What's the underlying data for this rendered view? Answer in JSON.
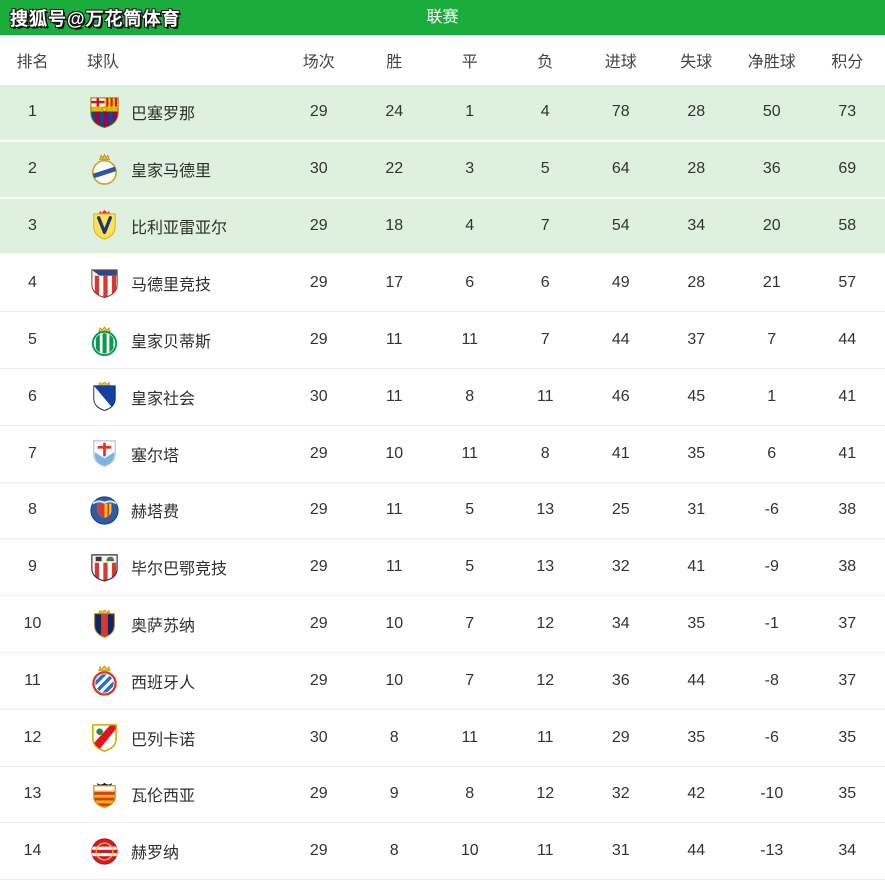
{
  "topbar": {
    "watermark": "搜狐号@万花筒体育",
    "tab": "联赛"
  },
  "colors": {
    "header_green": "#1bad3b",
    "highlight_row_bg": "#def0de"
  },
  "standings": {
    "columns": [
      "排名",
      "球队",
      "场次",
      "胜",
      "平",
      "负",
      "进球",
      "失球",
      "净胜球",
      "积分"
    ],
    "rows": [
      {
        "rank": 1,
        "team": "巴塞罗那",
        "logo": "barcelona",
        "played": 29,
        "won": 24,
        "drawn": 1,
        "lost": 4,
        "goals_for": 78,
        "goals_against": 28,
        "goal_diff": 50,
        "points": 73,
        "highlight": true
      },
      {
        "rank": 2,
        "team": "皇家马德里",
        "logo": "real-madrid",
        "played": 30,
        "won": 22,
        "drawn": 3,
        "lost": 5,
        "goals_for": 64,
        "goals_against": 28,
        "goal_diff": 36,
        "points": 69,
        "highlight": true
      },
      {
        "rank": 3,
        "team": "比利亚雷亚尔",
        "logo": "villarreal",
        "played": 29,
        "won": 18,
        "drawn": 4,
        "lost": 7,
        "goals_for": 54,
        "goals_against": 34,
        "goal_diff": 20,
        "points": 58,
        "highlight": true
      },
      {
        "rank": 4,
        "team": "马德里竞技",
        "logo": "atletico",
        "played": 29,
        "won": 17,
        "drawn": 6,
        "lost": 6,
        "goals_for": 49,
        "goals_against": 28,
        "goal_diff": 21,
        "points": 57,
        "highlight": false
      },
      {
        "rank": 5,
        "team": "皇家贝蒂斯",
        "logo": "betis",
        "played": 29,
        "won": 11,
        "drawn": 11,
        "lost": 7,
        "goals_for": 44,
        "goals_against": 37,
        "goal_diff": 7,
        "points": 44,
        "highlight": false
      },
      {
        "rank": 6,
        "team": "皇家社会",
        "logo": "sociedad",
        "played": 30,
        "won": 11,
        "drawn": 8,
        "lost": 11,
        "goals_for": 46,
        "goals_against": 45,
        "goal_diff": 1,
        "points": 41,
        "highlight": false
      },
      {
        "rank": 7,
        "team": "塞尔塔",
        "logo": "celta",
        "played": 29,
        "won": 10,
        "drawn": 11,
        "lost": 8,
        "goals_for": 41,
        "goals_against": 35,
        "goal_diff": 6,
        "points": 41,
        "highlight": false
      },
      {
        "rank": 8,
        "team": "赫塔费",
        "logo": "getafe",
        "played": 29,
        "won": 11,
        "drawn": 5,
        "lost": 13,
        "goals_for": 25,
        "goals_against": 31,
        "goal_diff": -6,
        "points": 38,
        "highlight": false
      },
      {
        "rank": 9,
        "team": "毕尔巴鄂竞技",
        "logo": "athletic",
        "played": 29,
        "won": 11,
        "drawn": 5,
        "lost": 13,
        "goals_for": 32,
        "goals_against": 41,
        "goal_diff": -9,
        "points": 38,
        "highlight": false
      },
      {
        "rank": 10,
        "team": "奥萨苏纳",
        "logo": "osasuna",
        "played": 29,
        "won": 10,
        "drawn": 7,
        "lost": 12,
        "goals_for": 34,
        "goals_against": 35,
        "goal_diff": -1,
        "points": 37,
        "highlight": false
      },
      {
        "rank": 11,
        "team": "西班牙人",
        "logo": "espanyol",
        "played": 29,
        "won": 10,
        "drawn": 7,
        "lost": 12,
        "goals_for": 36,
        "goals_against": 44,
        "goal_diff": -8,
        "points": 37,
        "highlight": false
      },
      {
        "rank": 12,
        "team": "巴列卡诺",
        "logo": "rayo",
        "played": 30,
        "won": 8,
        "drawn": 11,
        "lost": 11,
        "goals_for": 29,
        "goals_against": 35,
        "goal_diff": -6,
        "points": 35,
        "highlight": false
      },
      {
        "rank": 13,
        "team": "瓦伦西亚",
        "logo": "valencia",
        "played": 29,
        "won": 9,
        "drawn": 8,
        "lost": 12,
        "goals_for": 32,
        "goals_against": 42,
        "goal_diff": -10,
        "points": 35,
        "highlight": false
      },
      {
        "rank": 14,
        "team": "赫罗纳",
        "logo": "girona",
        "played": 29,
        "won": 8,
        "drawn": 10,
        "lost": 11,
        "goals_for": 31,
        "goals_against": 44,
        "goal_diff": -13,
        "points": 34,
        "highlight": false
      }
    ]
  }
}
